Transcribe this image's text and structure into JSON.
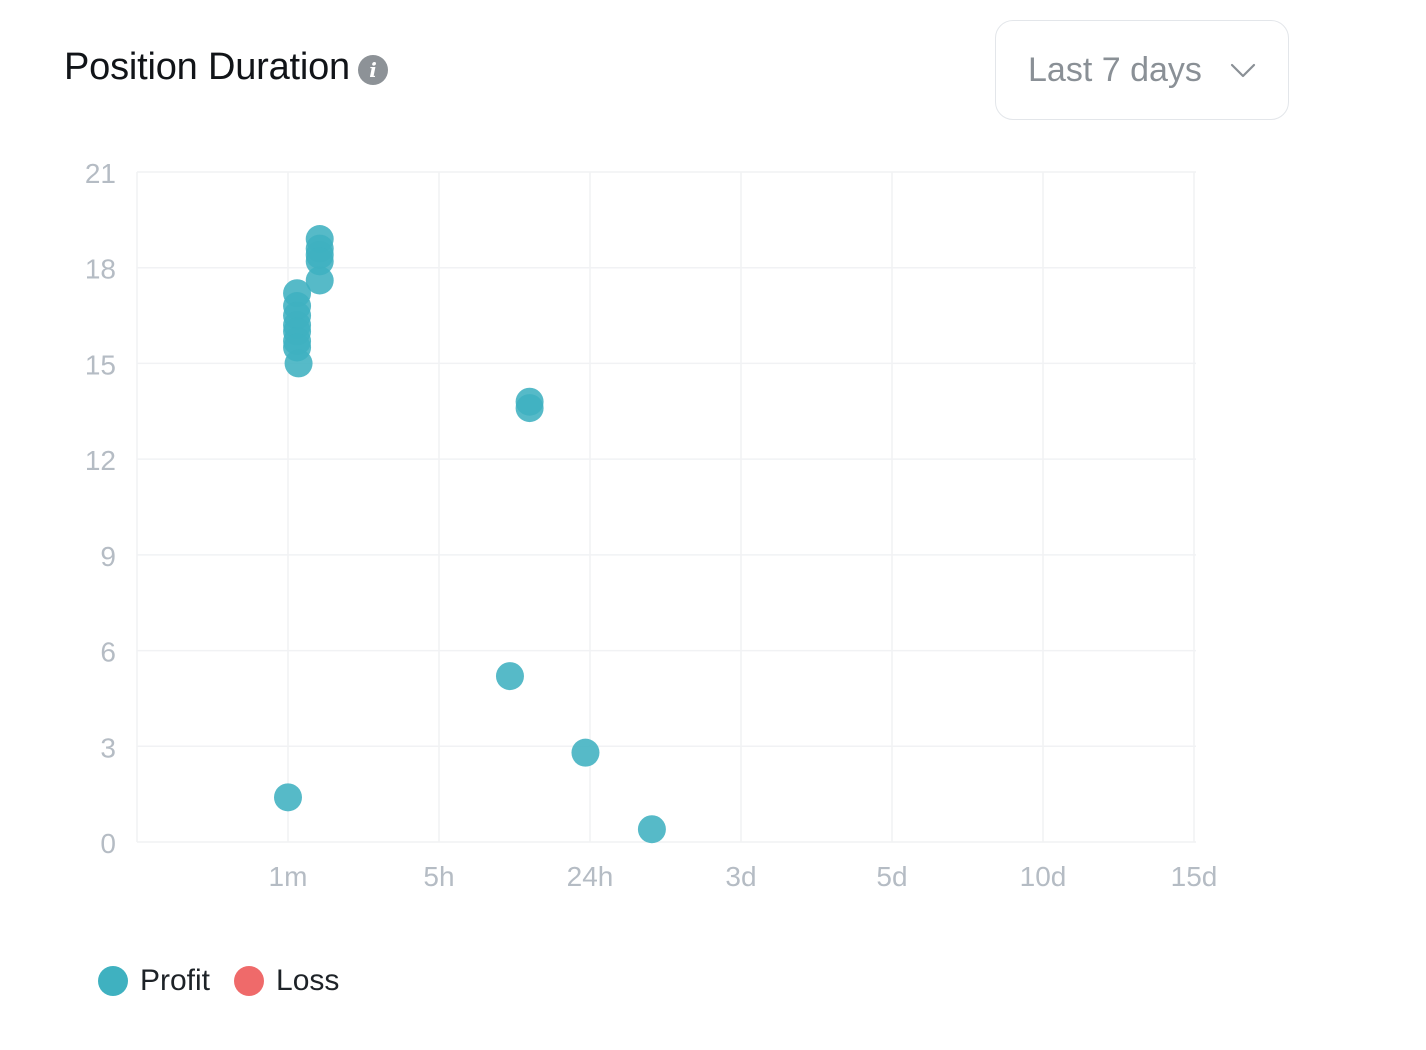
{
  "header": {
    "title": "Position Duration",
    "info_icon": "info-icon",
    "range_select": {
      "value": "Last 7 days",
      "icon": "chevron-down-icon"
    }
  },
  "colors": {
    "profit": "#3fb1c0",
    "loss": "#ef6a6a",
    "grid": "#f1f2f4",
    "tick": "#b5bcc4"
  },
  "chart_data": {
    "type": "scatter",
    "title": "Position Duration",
    "xlabel": "",
    "ylabel": "",
    "x_ticks": [
      "1m",
      "5h",
      "24h",
      "3d",
      "5d",
      "10d",
      "15d"
    ],
    "y_ticks": [
      0,
      3,
      6,
      9,
      12,
      15,
      18,
      21
    ],
    "ylim": [
      0,
      21
    ],
    "grid": true,
    "legend": "bottom-left",
    "series": [
      {
        "name": "Profit",
        "color": "#3fb1c0",
        "points": [
          {
            "x": 0.0,
            "y": 1.4
          },
          {
            "x": 0.06,
            "y": 17.2
          },
          {
            "x": 0.06,
            "y": 16.8
          },
          {
            "x": 0.06,
            "y": 16.5
          },
          {
            "x": 0.06,
            "y": 16.2
          },
          {
            "x": 0.06,
            "y": 16.0
          },
          {
            "x": 0.06,
            "y": 15.7
          },
          {
            "x": 0.06,
            "y": 15.5
          },
          {
            "x": 0.07,
            "y": 15.0
          },
          {
            "x": 0.21,
            "y": 18.9
          },
          {
            "x": 0.21,
            "y": 18.6
          },
          {
            "x": 0.21,
            "y": 18.4
          },
          {
            "x": 0.21,
            "y": 18.2
          },
          {
            "x": 0.21,
            "y": 17.6
          },
          {
            "x": 1.6,
            "y": 13.8
          },
          {
            "x": 1.6,
            "y": 13.6
          },
          {
            "x": 1.47,
            "y": 5.2
          },
          {
            "x": 1.97,
            "y": 2.8
          },
          {
            "x": 2.41,
            "y": 0.4
          }
        ]
      },
      {
        "name": "Loss",
        "color": "#ef6a6a",
        "points": []
      }
    ]
  }
}
